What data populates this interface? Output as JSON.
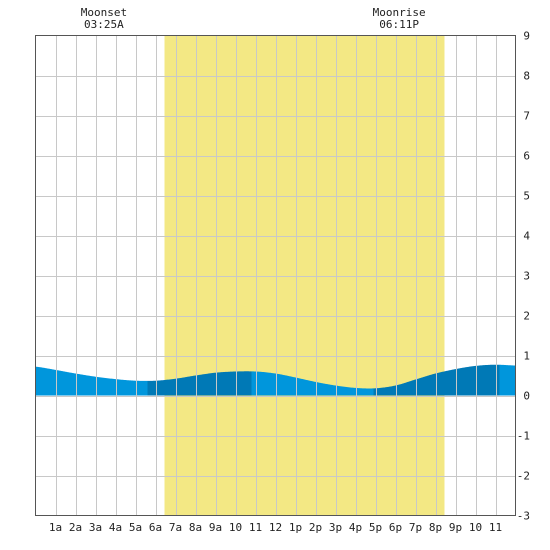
{
  "chart_data": {
    "type": "area",
    "title": "",
    "xlabel": "",
    "ylabel": "",
    "x_range": [
      0,
      24
    ],
    "ylim": [
      -3,
      9
    ],
    "y_ticks": [
      "-3",
      "-2",
      "-1",
      "0",
      "1",
      "2",
      "3",
      "4",
      "5",
      "6",
      "7",
      "8",
      "9"
    ],
    "x_tick_labels": [
      "1a",
      "2a",
      "3a",
      "4a",
      "5a",
      "6a",
      "7a",
      "8a",
      "9a",
      "10",
      "11",
      "12",
      "1p",
      "2p",
      "3p",
      "4p",
      "5p",
      "6p",
      "7p",
      "8p",
      "9p",
      "10",
      "11"
    ],
    "grid": true,
    "daylight": {
      "start_hour": 6.45,
      "end_hour": 20.45
    },
    "annotations": [
      {
        "label": "Moonset",
        "time": "03:25A",
        "hour": 3.42
      },
      {
        "label": "Moonrise",
        "time": "06:11P",
        "hour": 18.18
      }
    ],
    "series": [
      {
        "x": [
          0,
          1,
          2,
          3,
          4,
          5,
          6,
          7,
          8,
          9,
          10,
          11,
          12,
          13,
          14,
          15,
          16,
          17,
          18,
          19,
          20,
          21,
          22,
          23,
          24
        ],
        "y": [
          0.72,
          0.64,
          0.55,
          0.47,
          0.41,
          0.37,
          0.37,
          0.42,
          0.5,
          0.57,
          0.6,
          0.6,
          0.55,
          0.45,
          0.34,
          0.25,
          0.19,
          0.18,
          0.25,
          0.4,
          0.55,
          0.66,
          0.74,
          0.77,
          0.75
        ]
      }
    ],
    "colors": {
      "daylight": "#f3e884",
      "tide_light": "#0096dc",
      "tide_dark": "#0079b6",
      "grid": "#c8c8c8"
    }
  }
}
